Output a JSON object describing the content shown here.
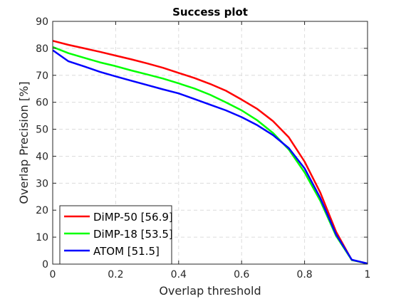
{
  "chart_data": {
    "type": "line",
    "title": "Success plot",
    "xlabel": "Overlap threshold",
    "ylabel": "Overlap Precision [%]",
    "xlim": [
      0,
      1
    ],
    "ylim": [
      0,
      90
    ],
    "x_ticks": [
      0,
      0.2,
      0.4,
      0.6,
      0.8,
      1
    ],
    "x_tick_labels": [
      "0",
      "0.2",
      "0.4",
      "0.6",
      "0.8",
      "1"
    ],
    "y_ticks": [
      0,
      10,
      20,
      30,
      40,
      50,
      60,
      70,
      80,
      90
    ],
    "y_tick_labels": [
      "0",
      "10",
      "20",
      "30",
      "40",
      "50",
      "60",
      "70",
      "80",
      "90"
    ],
    "grid": true,
    "legend_position": "bottom-left",
    "x": [
      0,
      0.05,
      0.1,
      0.15,
      0.2,
      0.25,
      0.3,
      0.35,
      0.4,
      0.45,
      0.5,
      0.55,
      0.6,
      0.65,
      0.7,
      0.75,
      0.8,
      0.85,
      0.9,
      0.95,
      1.0
    ],
    "series": [
      {
        "name": "DiMP-50 [56.9]",
        "color": "#ff0000",
        "values": [
          82.8,
          81.3,
          80.0,
          78.7,
          77.3,
          75.9,
          74.4,
          72.8,
          70.9,
          69.0,
          66.8,
          64.3,
          61.0,
          57.5,
          53.0,
          47.0,
          38.0,
          26.5,
          12.0,
          1.5,
          0.2
        ]
      },
      {
        "name": "DiMP-18 [53.5]",
        "color": "#00ff00",
        "values": [
          80.5,
          78.2,
          76.5,
          74.8,
          73.4,
          71.8,
          70.3,
          68.8,
          67.0,
          65.1,
          62.8,
          60.0,
          57.0,
          53.3,
          48.6,
          42.5,
          34.0,
          23.5,
          10.5,
          1.5,
          0.2
        ]
      },
      {
        "name": "ATOM [51.5]",
        "color": "#0000ff",
        "values": [
          79.3,
          75.2,
          73.3,
          71.3,
          69.6,
          68.0,
          66.4,
          64.8,
          63.3,
          61.2,
          59.1,
          57.0,
          54.5,
          51.5,
          47.8,
          43.0,
          35.5,
          24.5,
          11.0,
          1.6,
          0.2
        ]
      }
    ]
  }
}
